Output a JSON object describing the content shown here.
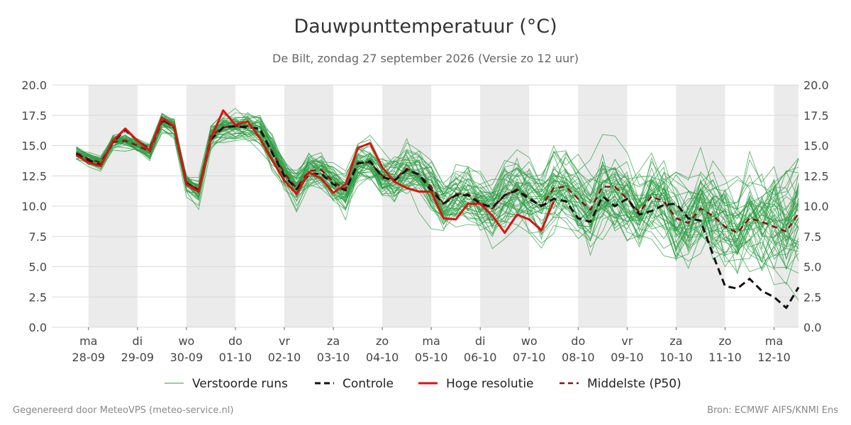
{
  "title": "Dauwpunttemperatuur (°C)",
  "subtitle": "De Bilt, zondag 27 september 2026 (Versie zo 12 uur)",
  "footer_left": "Gegenereerd door MeteoVPS (meteo-service.nl)",
  "footer_right": "Bron: ECMWF AIFS/KNMI Ens",
  "colors": {
    "ensemble": "#2e9e44",
    "control": "#111111",
    "high_res": "#dd1111",
    "median": "#8b1010",
    "weekend_band": "#ebebeb",
    "grid": "#d8d8d8"
  },
  "chart_data": {
    "type": "line",
    "x_unit": "days since 28-09 00:00 (tick positions = day starts)",
    "xlim": [
      -0.75,
      14.5
    ],
    "ylim": [
      0,
      20
    ],
    "y_ticks": [
      "0.0",
      "2.5",
      "5.0",
      "7.5",
      "10.0",
      "12.5",
      "15.0",
      "17.5",
      "20.0"
    ],
    "y_tick_values": [
      0,
      2.5,
      5,
      7.5,
      10,
      12.5,
      15,
      17.5,
      20
    ],
    "x_ticks": [
      {
        "day": "ma",
        "date": "28-09"
      },
      {
        "day": "di",
        "date": "29-09"
      },
      {
        "day": "wo",
        "date": "30-09"
      },
      {
        "day": "do",
        "date": "01-10"
      },
      {
        "day": "vr",
        "date": "02-10"
      },
      {
        "day": "za",
        "date": "03-10"
      },
      {
        "day": "zo",
        "date": "04-10"
      },
      {
        "day": "ma",
        "date": "05-10"
      },
      {
        "day": "di",
        "date": "06-10"
      },
      {
        "day": "wo",
        "date": "07-10"
      },
      {
        "day": "do",
        "date": "08-10"
      },
      {
        "day": "vr",
        "date": "09-10"
      },
      {
        "day": "za",
        "date": "10-10"
      },
      {
        "day": "zo",
        "date": "11-10"
      },
      {
        "day": "ma",
        "date": "12-10"
      }
    ],
    "shaded_day_bands": [
      [
        0,
        1
      ],
      [
        2,
        3
      ],
      [
        4,
        5
      ],
      [
        6,
        7
      ],
      [
        8,
        9
      ],
      [
        10,
        11
      ],
      [
        12,
        13
      ],
      [
        14,
        14.5
      ]
    ],
    "grid": true,
    "legend_position": "bottom",
    "legend": [
      "Verstoorde runs",
      "Controle",
      "Hoge resolutie",
      "Middelste (P50)"
    ],
    "series": [
      {
        "name": "Hoge resolutie",
        "x": [
          -0.25,
          0,
          0.25,
          0.5,
          0.75,
          1,
          1.25,
          1.5,
          1.75,
          2,
          2.25,
          2.5,
          2.75,
          3,
          3.25,
          3.5,
          3.75,
          4,
          4.25,
          4.5,
          4.75,
          5,
          5.25,
          5.5,
          5.75,
          6,
          6.25,
          6.5,
          6.75,
          7,
          7.25,
          7.5,
          7.75,
          8,
          8.25,
          8.5,
          8.75,
          9,
          9.25,
          9.5
        ],
        "values": [
          14.2,
          13.6,
          13.3,
          15.4,
          16.4,
          15.4,
          14.6,
          17.3,
          16.6,
          11.8,
          11.2,
          15.6,
          17.9,
          16.7,
          17.0,
          15.6,
          13.8,
          12.1,
          11.0,
          12.8,
          12.3,
          11.1,
          11.8,
          14.8,
          15.2,
          13.2,
          12.0,
          11.5,
          11.2,
          11.2,
          9.0,
          8.9,
          10.2,
          10.2,
          9.2,
          7.8,
          9.3,
          8.9,
          8.0,
          10.4
        ]
      },
      {
        "name": "Controle",
        "x": [
          -0.25,
          0,
          0.25,
          0.5,
          0.75,
          1,
          1.25,
          1.5,
          1.75,
          2,
          2.25,
          2.5,
          2.75,
          3,
          3.25,
          3.5,
          3.75,
          4,
          4.25,
          4.5,
          4.75,
          5,
          5.25,
          5.5,
          5.75,
          6,
          6.25,
          6.5,
          6.75,
          7,
          7.25,
          7.5,
          7.75,
          8,
          8.25,
          8.5,
          8.75,
          9,
          9.25,
          9.5,
          9.75,
          10,
          10.25,
          10.5,
          10.75,
          11,
          11.25,
          11.5,
          11.75,
          12,
          12.25,
          12.5,
          12.75,
          13,
          13.25,
          13.5,
          13.75,
          14,
          14.25,
          14.5
        ],
        "values": [
          14.3,
          13.8,
          13.4,
          15.3,
          16.3,
          15.4,
          14.7,
          17.2,
          16.5,
          11.9,
          11.3,
          15.5,
          16.5,
          16.6,
          16.5,
          16.4,
          14.4,
          12.5,
          11.4,
          12.6,
          12.7,
          11.8,
          11.3,
          13.5,
          13.7,
          12.4,
          12.1,
          13.0,
          12.6,
          11.3,
          10.2,
          10.9,
          10.9,
          10.2,
          9.9,
          10.9,
          11.3,
          10.6,
          10.0,
          10.6,
          10.4,
          9.0,
          8.7,
          10.8,
          10.0,
          10.6,
          9.3,
          9.6,
          10.1,
          10.2,
          9.0,
          8.8,
          6.0,
          3.4,
          3.2,
          4.0,
          3.0,
          2.5,
          1.6,
          3.3
        ]
      },
      {
        "name": "Middelste (P50)",
        "x": [
          -0.25,
          0,
          0.25,
          0.5,
          0.75,
          1,
          1.25,
          1.5,
          1.75,
          2,
          2.25,
          2.5,
          2.75,
          3,
          3.25,
          3.5,
          3.75,
          4,
          4.25,
          4.5,
          4.75,
          5,
          5.25,
          5.5,
          5.75,
          6,
          6.25,
          6.5,
          6.75,
          7,
          7.25,
          7.5,
          7.75,
          8,
          8.25,
          8.5,
          8.75,
          9,
          9.25,
          9.5,
          9.75,
          10,
          10.25,
          10.5,
          10.75,
          11,
          11.25,
          11.5,
          11.75,
          12,
          12.25,
          12.5,
          12.75,
          13,
          13.25,
          13.5,
          13.75,
          14,
          14.25,
          14.5
        ],
        "values": [
          14.4,
          13.9,
          13.6,
          15.3,
          15.4,
          15.0,
          14.5,
          17.0,
          16.6,
          12.0,
          11.3,
          15.8,
          16.5,
          16.6,
          16.6,
          16.3,
          14.5,
          12.7,
          11.5,
          12.9,
          13.0,
          12.0,
          11.4,
          13.6,
          13.6,
          12.5,
          12.2,
          13.1,
          12.6,
          11.6,
          10.2,
          11.0,
          11.0,
          10.3,
          9.8,
          10.9,
          11.4,
          10.7,
          10.0,
          11.5,
          11.6,
          10.6,
          9.7,
          11.6,
          11.6,
          10.6,
          9.5,
          10.8,
          10.4,
          9.0,
          8.6,
          9.8,
          9.2,
          8.3,
          7.8,
          9.0,
          8.7,
          8.3,
          7.9,
          9.4
        ]
      }
    ],
    "ensemble": {
      "name": "Verstoorde runs",
      "member_count": 50,
      "x_step": 0.25,
      "x_start": -0.25,
      "median": [
        14.4,
        13.9,
        13.6,
        15.3,
        15.4,
        15.0,
        14.5,
        17.0,
        16.6,
        12.0,
        11.3,
        15.8,
        16.5,
        16.6,
        16.6,
        16.3,
        14.5,
        12.7,
        11.5,
        12.9,
        13.0,
        12.0,
        11.4,
        13.6,
        13.6,
        12.5,
        12.2,
        13.1,
        12.6,
        11.6,
        10.2,
        11.0,
        11.0,
        10.3,
        9.8,
        10.9,
        11.4,
        10.7,
        10.0,
        11.5,
        11.6,
        10.6,
        9.7,
        11.6,
        11.6,
        10.6,
        9.5,
        10.8,
        10.4,
        9.0,
        8.6,
        9.8,
        9.2,
        8.3,
        7.8,
        9.0,
        8.7,
        8.3,
        7.9,
        9.4
      ],
      "spread_start": 0.5,
      "spread_end": 4.8
    }
  }
}
